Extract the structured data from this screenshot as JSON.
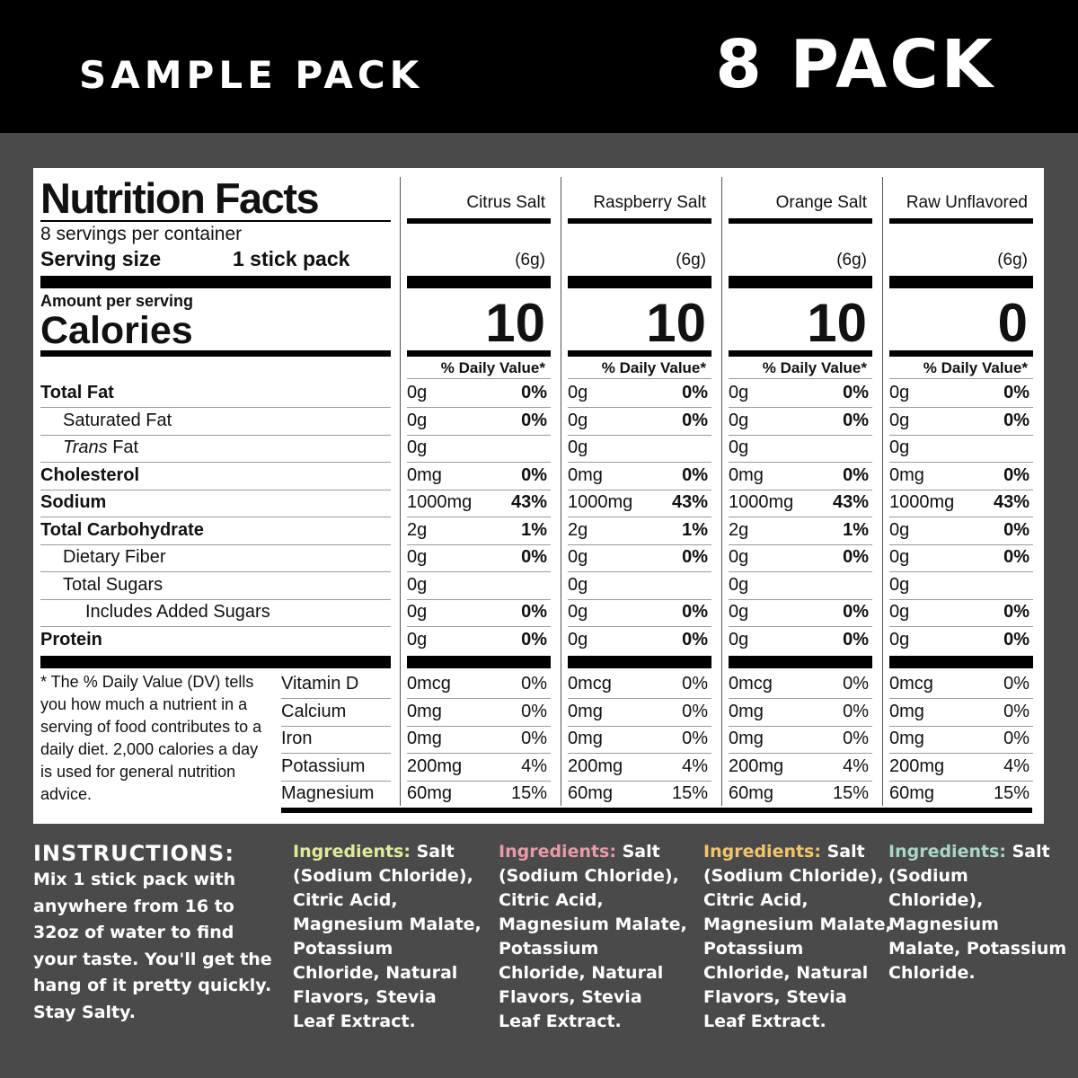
{
  "header": {
    "left": "SAMPLE PACK",
    "right": "8 PACK"
  },
  "nutrition": {
    "title": "Nutrition Facts",
    "servings_per_container": "8 servings per container",
    "serving_size_label": "Serving size",
    "serving_size_value": "1 stick pack",
    "amount_per_serving": "Amount per serving",
    "calories_label": "Calories",
    "dv_header": "% Daily Value*",
    "flavors": [
      {
        "name": "Citrus Salt",
        "size": "(6g)",
        "calories": "10",
        "rows": [
          [
            "0g",
            "0%"
          ],
          [
            "0g",
            "0%"
          ],
          [
            "0g",
            ""
          ],
          [
            "0mg",
            "0%"
          ],
          [
            "1000mg",
            "43%"
          ],
          [
            "2g",
            "1%"
          ],
          [
            "0g",
            "0%"
          ],
          [
            "0g",
            ""
          ],
          [
            "0g",
            "0%"
          ],
          [
            "0g",
            "0%"
          ]
        ],
        "vitamins": [
          [
            "0mcg",
            "0%"
          ],
          [
            "0mg",
            "0%"
          ],
          [
            "0mg",
            "0%"
          ],
          [
            "200mg",
            "4%"
          ],
          [
            "60mg",
            "15%"
          ]
        ]
      },
      {
        "name": "Raspberry Salt",
        "size": "(6g)",
        "calories": "10",
        "rows": [
          [
            "0g",
            "0%"
          ],
          [
            "0g",
            "0%"
          ],
          [
            "0g",
            ""
          ],
          [
            "0mg",
            "0%"
          ],
          [
            "1000mg",
            "43%"
          ],
          [
            "2g",
            "1%"
          ],
          [
            "0g",
            "0%"
          ],
          [
            "0g",
            ""
          ],
          [
            "0g",
            "0%"
          ],
          [
            "0g",
            "0%"
          ]
        ],
        "vitamins": [
          [
            "0mcg",
            "0%"
          ],
          [
            "0mg",
            "0%"
          ],
          [
            "0mg",
            "0%"
          ],
          [
            "200mg",
            "4%"
          ],
          [
            "60mg",
            "15%"
          ]
        ]
      },
      {
        "name": "Orange Salt",
        "size": "(6g)",
        "calories": "10",
        "rows": [
          [
            "0g",
            "0%"
          ],
          [
            "0g",
            "0%"
          ],
          [
            "0g",
            ""
          ],
          [
            "0mg",
            "0%"
          ],
          [
            "1000mg",
            "43%"
          ],
          [
            "2g",
            "1%"
          ],
          [
            "0g",
            "0%"
          ],
          [
            "0g",
            ""
          ],
          [
            "0g",
            "0%"
          ],
          [
            "0g",
            "0%"
          ]
        ],
        "vitamins": [
          [
            "0mcg",
            "0%"
          ],
          [
            "0mg",
            "0%"
          ],
          [
            "0mg",
            "0%"
          ],
          [
            "200mg",
            "4%"
          ],
          [
            "60mg",
            "15%"
          ]
        ]
      },
      {
        "name": "Raw Unflavored",
        "size": "(6g)",
        "calories": "0",
        "rows": [
          [
            "0g",
            "0%"
          ],
          [
            "0g",
            "0%"
          ],
          [
            "0g",
            ""
          ],
          [
            "0mg",
            "0%"
          ],
          [
            "1000mg",
            "43%"
          ],
          [
            "0g",
            "0%"
          ],
          [
            "0g",
            "0%"
          ],
          [
            "0g",
            ""
          ],
          [
            "0g",
            "0%"
          ],
          [
            "0g",
            "0%"
          ]
        ],
        "vitamins": [
          [
            "0mcg",
            "0%"
          ],
          [
            "0mg",
            "0%"
          ],
          [
            "0mg",
            "0%"
          ],
          [
            "200mg",
            "4%"
          ],
          [
            "60mg",
            "15%"
          ]
        ]
      }
    ],
    "nutrients": [
      {
        "label": "Total Fat",
        "bold": true,
        "indent": 0
      },
      {
        "label": "Saturated Fat",
        "bold": false,
        "indent": 1
      },
      {
        "label": "Trans Fat",
        "bold": false,
        "indent": 1,
        "italic_prefix": "Trans"
      },
      {
        "label": "Cholesterol",
        "bold": true,
        "indent": 0
      },
      {
        "label": "Sodium",
        "bold": true,
        "indent": 0
      },
      {
        "label": "Total Carbohydrate",
        "bold": true,
        "indent": 0
      },
      {
        "label": "Dietary Fiber",
        "bold": false,
        "indent": 1
      },
      {
        "label": "Total Sugars",
        "bold": false,
        "indent": 1
      },
      {
        "label": "Includes Added Sugars",
        "bold": false,
        "indent": 2
      },
      {
        "label": "Protein",
        "bold": true,
        "indent": 0
      }
    ],
    "vitamin_labels": [
      "Vitamin D",
      "Calcium",
      "Iron",
      "Potassium",
      "Magnesium"
    ],
    "footnote": "* The % Daily Value (DV) tells you how much a nutrient in a serving of food contributes to a daily diet. 2,000 calories a day is used for general nutrition advice."
  },
  "instructions": {
    "heading": "INSTRUCTIONS:",
    "body": "Mix 1 stick pack with anywhere from 16 to 32oz of water to find your taste. You'll get the hang of it pretty quickly. Stay Salty."
  },
  "ingredients": [
    {
      "label": "Ingredients:",
      "text": " Salt (Sodium Chloride), Citric Acid, Magnesium Malate, Potassium Chloride, Natural Flavors, Stevia Leaf Extract.",
      "color": "#e3e99a"
    },
    {
      "label": "Ingredients:",
      "text": " Salt (Sodium Chloride), Citric Acid, Magnesium Malate, Potassium Chloride, Natural Flavors, Stevia Leaf Extract.",
      "color": "#e79aa7"
    },
    {
      "label": "Ingredients:",
      "text": " Salt (Sodium Chloride), Citric Acid, Magnesium Malate, Potassium Chloride, Natural Flavors, Stevia Leaf Extract.",
      "color": "#f2c56a"
    },
    {
      "label": "Ingredients:",
      "text": " Salt (Sodium Chloride), Magnesium Malate, Potassium Chloride.",
      "color": "#a9d6c6"
    }
  ]
}
